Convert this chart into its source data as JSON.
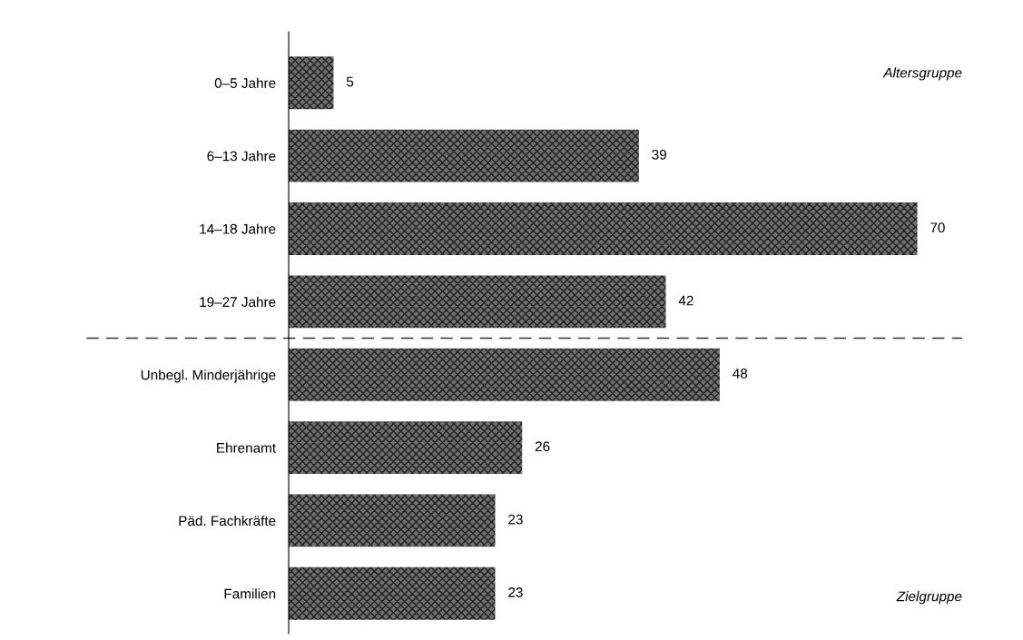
{
  "chart_data": {
    "type": "bar",
    "orientation": "horizontal",
    "categories": [
      "0–5 Jahre",
      "6–13 Jahre",
      "14–18 Jahre",
      "19–27 Jahre",
      "Unbegl. Minderjährige",
      "Ehrenamt",
      "Päd. Fachkräfte",
      "Familien"
    ],
    "values": [
      5,
      39,
      70,
      42,
      48,
      26,
      23,
      23
    ],
    "color": "#6e6e6e",
    "data_labels": true,
    "xlim": [
      0,
      75
    ],
    "tick_labels": "y",
    "grid": false,
    "legend": false,
    "annotations": [
      "Altersgruppe",
      "Zielgruppe"
    ]
  }
}
